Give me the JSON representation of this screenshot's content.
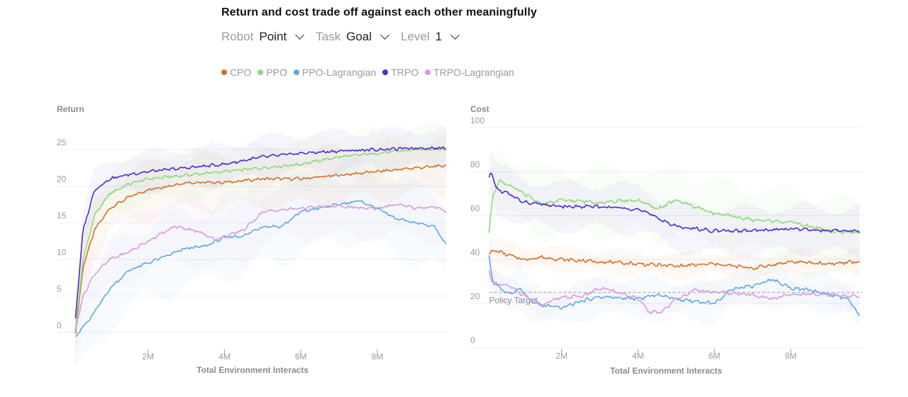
{
  "header": {
    "title": "Return and cost trade off against each other meaningfully",
    "controls": [
      {
        "label": "Robot",
        "value": "Point"
      },
      {
        "label": "Task",
        "value": "Goal"
      },
      {
        "label": "Level",
        "value": "1"
      }
    ]
  },
  "legend": [
    {
      "name": "CPO",
      "color": "#d2702a"
    },
    {
      "name": "PPO",
      "color": "#8fd87a"
    },
    {
      "name": "PPO-Lagrangian",
      "color": "#5fa8e0"
    },
    {
      "name": "TRPO",
      "color": "#4b2bd4"
    },
    {
      "name": "TRPO-Lagrangian",
      "color": "#d89ae0"
    }
  ],
  "chart_data": [
    {
      "type": "line",
      "title": "Return",
      "ylabel": "Return",
      "xlabel": "Total Environment Interacts",
      "xlim": [
        0,
        9.8
      ],
      "ylim": [
        0,
        25
      ],
      "yticks": [
        0,
        5,
        10,
        15,
        20,
        25
      ],
      "xticks": [
        {
          "v": 2,
          "label": "2M"
        },
        {
          "v": 4,
          "label": "4M"
        },
        {
          "v": 6,
          "label": "6M"
        },
        {
          "v": 8,
          "label": "8M"
        }
      ],
      "grid": true,
      "series": [
        {
          "name": "CPO",
          "color": "#d2702a",
          "band": 3.5,
          "x": [
            0.1,
            0.3,
            0.6,
            1,
            1.5,
            2,
            3,
            4,
            5,
            6,
            7,
            8,
            9,
            9.8
          ],
          "y": [
            0,
            9,
            14,
            17,
            18.5,
            19.5,
            20.5,
            20.5,
            21,
            21,
            21.5,
            22,
            22.5,
            22.8
          ]
        },
        {
          "name": "PPO",
          "color": "#8fd87a",
          "band": 3,
          "x": [
            0.1,
            0.3,
            0.6,
            1,
            1.5,
            2,
            3,
            4,
            5,
            6,
            7,
            8,
            9,
            9.8
          ],
          "y": [
            0.5,
            10,
            16,
            19,
            20.3,
            21,
            21.5,
            22,
            22.5,
            23,
            24,
            24.5,
            25,
            25.2
          ]
        },
        {
          "name": "PPO-Lagrangian",
          "color": "#5fa8e0",
          "band": 5,
          "x": [
            0.1,
            0.5,
            1,
            1.5,
            2,
            2.5,
            3,
            3.5,
            4,
            4.5,
            5,
            5.5,
            6,
            7,
            7.5,
            8,
            8.5,
            9,
            9.5,
            9.8
          ],
          "y": [
            -0.5,
            2,
            6,
            8.5,
            9.5,
            10.5,
            11.5,
            11.8,
            13,
            13.2,
            14.5,
            14.5,
            16.5,
            17.5,
            18,
            17,
            15.5,
            15,
            14.5,
            12
          ]
        },
        {
          "name": "TRPO",
          "color": "#4b2bd4",
          "band": 2.5,
          "x": [
            0.1,
            0.3,
            0.6,
            1,
            1.5,
            2,
            3,
            4,
            5,
            6,
            7,
            8,
            9,
            9.8
          ],
          "y": [
            2,
            14,
            19.5,
            21,
            21.6,
            22,
            22.5,
            23,
            24,
            24.5,
            24.8,
            25,
            25.2,
            25.2
          ]
        },
        {
          "name": "TRPO-Lagrangian",
          "color": "#d89ae0",
          "band": 4,
          "x": [
            0.1,
            0.3,
            0.6,
            1,
            1.5,
            2,
            2.7,
            3.2,
            3.8,
            4.5,
            5,
            6,
            7,
            7.5,
            8,
            8.5,
            9,
            9.5,
            9.8
          ],
          "y": [
            0.5,
            5,
            8,
            10,
            11,
            12.5,
            14.5,
            14,
            12.7,
            14,
            16.5,
            17,
            17.3,
            17,
            17,
            17.5,
            17,
            17.2,
            16.5
          ]
        }
      ]
    },
    {
      "type": "line",
      "title": "Cost",
      "ylabel": "Cost",
      "xlabel": "Total Environment Interacts",
      "xlim": [
        0,
        9.8
      ],
      "ylim": [
        0,
        100
      ],
      "yticks": [
        0,
        20,
        40,
        60,
        80,
        100
      ],
      "xticks": [
        {
          "v": 2,
          "label": "2M"
        },
        {
          "v": 4,
          "label": "4M"
        },
        {
          "v": 6,
          "label": "6M"
        },
        {
          "v": 8,
          "label": "8M"
        }
      ],
      "grid": true,
      "annotation": {
        "label": "Policy Target",
        "value": 25
      },
      "series": [
        {
          "name": "CPO",
          "color": "#d2702a",
          "band": 5,
          "x": [
            0.1,
            0.3,
            0.6,
            1,
            1.5,
            2,
            3,
            4,
            5,
            6,
            7,
            8,
            9,
            9.8
          ],
          "y": [
            43,
            44,
            42,
            40,
            41,
            40,
            39,
            38,
            37,
            38,
            36,
            39,
            38,
            39
          ]
        },
        {
          "name": "PPO",
          "color": "#8fd87a",
          "band": 14,
          "x": [
            0.1,
            0.2,
            0.4,
            0.6,
            1,
            1.5,
            2,
            3,
            4,
            4.5,
            5,
            6,
            7,
            8,
            9,
            9.8
          ],
          "y": [
            52,
            70,
            76,
            74,
            70,
            65,
            67,
            66,
            67,
            63,
            67,
            61,
            58,
            57,
            53,
            52
          ]
        },
        {
          "name": "PPO-Lagrangian",
          "color": "#5fa8e0",
          "band": 8,
          "x": [
            0.1,
            0.2,
            0.6,
            0.9,
            1.2,
            1.5,
            2,
            2.5,
            3,
            4,
            4.5,
            5,
            6,
            6.5,
            7,
            7.5,
            8,
            8.5,
            9,
            9.5,
            9.8
          ],
          "y": [
            41,
            30,
            24,
            27,
            21,
            19,
            18,
            21,
            23,
            22,
            24,
            22,
            20,
            27,
            28,
            31,
            27,
            26,
            24,
            22,
            14
          ]
        },
        {
          "name": "TRPO",
          "color": "#4b2bd4",
          "band": 10,
          "x": [
            0.1,
            0.15,
            0.3,
            0.6,
            1,
            2,
            3,
            4,
            4.5,
            5,
            6,
            7,
            8,
            9,
            9.8
          ],
          "y": [
            77,
            80,
            72,
            70,
            66,
            64,
            64,
            63,
            59,
            55,
            53,
            53,
            54,
            53,
            53
          ]
        },
        {
          "name": "TRPO-Lagrangian",
          "color": "#d89ae0",
          "band": 5,
          "x": [
            0.1,
            0.2,
            0.6,
            1,
            1.5,
            2,
            2.5,
            3,
            3.5,
            4,
            4.3,
            4.6,
            5,
            5.5,
            6,
            7,
            7.5,
            8,
            9,
            9.8
          ],
          "y": [
            35,
            29,
            28,
            24,
            19,
            23,
            23,
            27,
            25,
            22,
            16,
            16,
            22,
            26,
            25,
            24,
            22,
            24,
            24,
            23
          ]
        }
      ]
    }
  ]
}
